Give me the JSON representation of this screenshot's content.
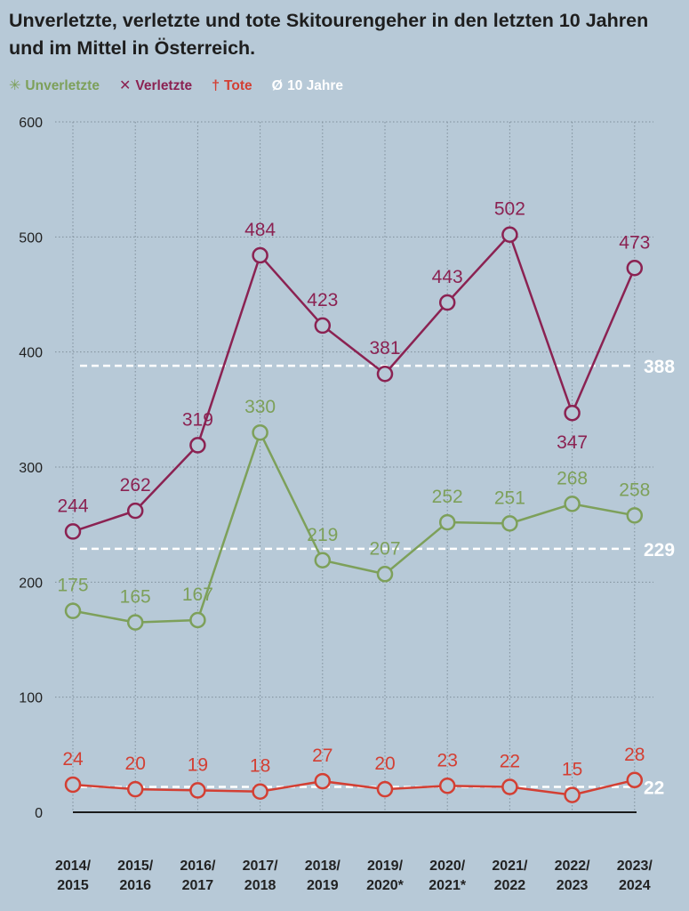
{
  "title": "Unverletzte, verletzte und tote Skitourengeher in den letzten 10 Jahren und im Mittel in Österreich.",
  "legend": [
    {
      "symbol": "✳",
      "label": "Unverletzte",
      "color": "#7da05a"
    },
    {
      "symbol": "✕",
      "label": "Verletzte",
      "color": "#8b2252"
    },
    {
      "symbol": "†",
      "label": "Tote",
      "color": "#d33f33"
    },
    {
      "symbol": "Ø",
      "label": "10 Jahre",
      "color": "#ffffff"
    }
  ],
  "colors": {
    "background": "#b7c9d7",
    "grid": "#7f8f9b",
    "baseline": "#1a1a1a",
    "average": "#ffffff"
  },
  "chart_data": {
    "type": "line",
    "categories": [
      [
        "2014/",
        "2015"
      ],
      [
        "2015/",
        "2016"
      ],
      [
        "2016/",
        "2017"
      ],
      [
        "2017/",
        "2018"
      ],
      [
        "2018/",
        "2019"
      ],
      [
        "2019/",
        "2020*"
      ],
      [
        "2020/",
        "2021*"
      ],
      [
        "2021/",
        "2022"
      ],
      [
        "2022/",
        "2023"
      ],
      [
        "2023/",
        "2024"
      ]
    ],
    "ylim": [
      0,
      600
    ],
    "yticks": [
      0,
      100,
      200,
      300,
      400,
      500,
      600
    ],
    "grid": true,
    "series": [
      {
        "name": "Verletzte",
        "color": "#8b2252",
        "values": [
          244,
          262,
          319,
          484,
          423,
          381,
          443,
          502,
          347,
          473
        ],
        "label_pos": [
          "above",
          "above",
          "above",
          "above",
          "above",
          "above",
          "above",
          "above",
          "below",
          "above"
        ]
      },
      {
        "name": "Unverletzte",
        "color": "#7da05a",
        "values": [
          175,
          165,
          167,
          330,
          219,
          207,
          252,
          251,
          268,
          258
        ],
        "label_pos": [
          "above",
          "above",
          "above",
          "above",
          "above",
          "above",
          "above",
          "above",
          "above",
          "above"
        ]
      },
      {
        "name": "Tote",
        "color": "#d33f33",
        "values": [
          24,
          20,
          19,
          18,
          27,
          20,
          23,
          22,
          15,
          28
        ],
        "label_pos": [
          "above",
          "above",
          "above",
          "above",
          "above",
          "above",
          "above",
          "above",
          "above",
          "above"
        ]
      }
    ],
    "averages": [
      {
        "value": 388,
        "label": "388"
      },
      {
        "value": 229,
        "label": "229"
      },
      {
        "value": 22,
        "label": "22"
      }
    ]
  }
}
